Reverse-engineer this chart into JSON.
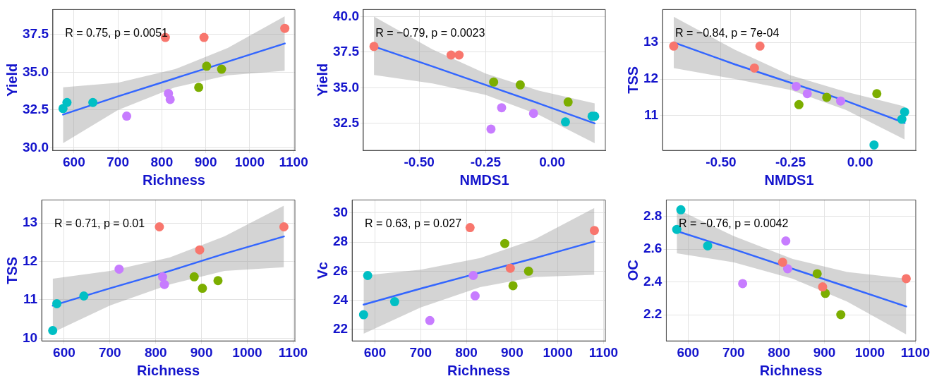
{
  "chart_data": [
    {
      "type": "scatter",
      "xlabel": "Richness",
      "ylabel": "Yield",
      "annotations": [
        "R = 0.75, p = 0.0051"
      ],
      "xlim": [
        552,
        1103
      ],
      "ylim": [
        29.83,
        39.15
      ],
      "xticks": [
        600,
        700,
        800,
        900,
        1000,
        1100
      ],
      "yticks": [
        {
          "value": 30,
          "label": "30.0"
        },
        32.5,
        {
          "value": 35,
          "label": "35.0"
        },
        37.5
      ],
      "grid": true,
      "legend": false,
      "marker": "circle",
      "series": [
        {
          "type": "line",
          "marker": "none",
          "color": "#3366ff",
          "x": [
            575,
            700,
            830,
            950,
            1080
          ],
          "values": [
            32.2,
            33.4,
            34.6,
            35.7,
            36.9
          ],
          "lower": [
            30.3,
            32.5,
            34.0,
            34.8,
            35.1
          ],
          "upper": [
            34.0,
            34.3,
            35.2,
            36.6,
            38.7
          ]
        },
        {
          "color": "#f8766d",
          "x": [
            808,
            896,
            1080
          ],
          "values": [
            37.3,
            37.3,
            37.9
          ]
        },
        {
          "color": "#7cae00",
          "x": [
            884,
            902,
            936
          ],
          "values": [
            34.0,
            35.4,
            35.2
          ]
        },
        {
          "color": "#00bfc4",
          "x": [
            575,
            584,
            643
          ],
          "values": [
            32.6,
            33.0,
            33.0
          ]
        },
        {
          "color": "#c77cff",
          "x": [
            720,
            815,
            819
          ],
          "values": [
            32.1,
            33.6,
            33.2
          ]
        }
      ]
    },
    {
      "type": "scatter",
      "xlabel": "NMDS1",
      "ylabel": "Yield",
      "annotations": [
        "R = −0.79, p = 0.0023"
      ],
      "xlim": [
        -0.71,
        0.2
      ],
      "ylim": [
        30.6,
        40.5
      ],
      "xticks": [
        {
          "value": -0.5,
          "label": "-0.50"
        },
        {
          "value": -0.25,
          "label": "-0.25"
        },
        {
          "value": 0,
          "label": "0.00"
        }
      ],
      "yticks": [
        32.5,
        {
          "value": 35,
          "label": "35.0"
        },
        37.5,
        {
          "value": 40,
          "label": "40.0"
        }
      ],
      "grid": true,
      "legend": false,
      "marker": "circle",
      "series": [
        {
          "type": "line",
          "marker": "none",
          "color": "#3366ff",
          "x": [
            -0.67,
            -0.45,
            -0.25,
            -0.05,
            0.16
          ],
          "values": [
            37.9,
            36.5,
            35.2,
            33.9,
            32.5
          ],
          "lower": [
            35.9,
            35.3,
            34.5,
            33.1,
            31.1
          ],
          "upper": [
            40.0,
            37.7,
            36.0,
            34.8,
            33.9
          ]
        },
        {
          "color": "#f8766d",
          "x": [
            -0.67,
            -0.38,
            -0.35
          ],
          "values": [
            37.9,
            37.3,
            37.3
          ]
        },
        {
          "color": "#7cae00",
          "x": [
            -0.22,
            -0.12,
            0.06
          ],
          "values": [
            35.4,
            35.2,
            34.0
          ]
        },
        {
          "color": "#00bfc4",
          "x": [
            0.05,
            0.15,
            0.16
          ],
          "values": [
            32.6,
            33.0,
            33.0
          ]
        },
        {
          "color": "#c77cff",
          "x": [
            -0.23,
            -0.19,
            -0.07
          ],
          "values": [
            32.1,
            33.6,
            33.2
          ]
        }
      ]
    },
    {
      "type": "scatter",
      "xlabel": "NMDS1",
      "ylabel": "TSS",
      "annotations": [
        "R = −0.84, p = 7e-04"
      ],
      "xlim": [
        -0.71,
        0.2
      ],
      "ylim": [
        10.05,
        13.9
      ],
      "xticks": [
        {
          "value": -0.5,
          "label": "-0.50"
        },
        {
          "value": -0.25,
          "label": "-0.25"
        },
        {
          "value": 0,
          "label": "0.00"
        }
      ],
      "yticks": [
        11,
        12,
        13
      ],
      "grid": true,
      "legend": false,
      "marker": "circle",
      "series": [
        {
          "type": "line",
          "marker": "none",
          "color": "#3366ff",
          "x": [
            -0.67,
            -0.45,
            -0.25,
            -0.05,
            0.16
          ],
          "values": [
            13.0,
            12.4,
            11.9,
            11.4,
            10.8
          ],
          "lower": [
            12.3,
            12.0,
            11.7,
            11.15,
            10.35
          ],
          "upper": [
            13.7,
            12.8,
            12.1,
            11.65,
            11.25
          ]
        },
        {
          "color": "#f8766d",
          "x": [
            -0.67,
            -0.36,
            -0.38
          ],
          "values": [
            12.9,
            12.9,
            12.3
          ]
        },
        {
          "color": "#7cae00",
          "x": [
            -0.22,
            -0.12,
            0.06
          ],
          "values": [
            11.3,
            11.5,
            11.6
          ]
        },
        {
          "color": "#00bfc4",
          "x": [
            0.05,
            0.16,
            0.15
          ],
          "values": [
            10.2,
            11.1,
            10.9
          ]
        },
        {
          "color": "#c77cff",
          "x": [
            -0.23,
            -0.19,
            -0.07
          ],
          "values": [
            11.8,
            11.6,
            11.4
          ]
        }
      ]
    },
    {
      "type": "scatter",
      "xlabel": "Richness",
      "ylabel": "TSS",
      "annotations": [
        "R = 0.71, p = 0.01"
      ],
      "xlim": [
        551,
        1104
      ],
      "ylim": [
        9.93,
        13.6
      ],
      "xticks": [
        600,
        700,
        800,
        900,
        1000,
        1100
      ],
      "yticks": [
        10,
        11,
        12,
        13
      ],
      "grid": true,
      "legend": false,
      "marker": "circle",
      "series": [
        {
          "type": "line",
          "marker": "none",
          "color": "#3366ff",
          "x": [
            575,
            700,
            830,
            950,
            1080
          ],
          "values": [
            10.85,
            11.3,
            11.75,
            12.2,
            12.65
          ],
          "lower": [
            10.15,
            10.85,
            11.4,
            11.75,
            11.85
          ],
          "upper": [
            11.55,
            11.75,
            12.1,
            12.65,
            13.45
          ]
        },
        {
          "color": "#f8766d",
          "x": [
            808,
            896,
            1080
          ],
          "values": [
            12.9,
            12.3,
            12.9
          ]
        },
        {
          "color": "#7cae00",
          "x": [
            884,
            902,
            936
          ],
          "values": [
            11.6,
            11.3,
            11.5
          ]
        },
        {
          "color": "#00bfc4",
          "x": [
            575,
            584,
            643
          ],
          "values": [
            10.2,
            10.9,
            11.1
          ]
        },
        {
          "color": "#c77cff",
          "x": [
            720,
            815,
            819
          ],
          "values": [
            11.8,
            11.6,
            11.4
          ]
        }
      ]
    },
    {
      "type": "scatter",
      "xlabel": "Richness",
      "ylabel": "Vc",
      "annotations": [
        "R = 0.63, p = 0.027"
      ],
      "xlim": [
        550,
        1104
      ],
      "ylim": [
        21.2,
        30.9
      ],
      "xticks": [
        600,
        700,
        800,
        900,
        1000,
        1100
      ],
      "yticks": [
        22,
        24,
        26,
        28,
        30
      ],
      "grid": true,
      "legend": false,
      "marker": "circle",
      "series": [
        {
          "type": "line",
          "marker": "none",
          "color": "#3366ff",
          "x": [
            575,
            700,
            830,
            950,
            1080
          ],
          "values": [
            23.7,
            24.8,
            25.9,
            26.9,
            28.05
          ],
          "lower": [
            21.7,
            23.5,
            24.9,
            25.6,
            25.75
          ],
          "upper": [
            25.7,
            26.1,
            26.9,
            28.2,
            30.35
          ]
        },
        {
          "color": "#f8766d",
          "x": [
            808,
            896,
            1080
          ],
          "values": [
            29.0,
            26.2,
            28.8
          ]
        },
        {
          "color": "#7cae00",
          "x": [
            884,
            902,
            936
          ],
          "values": [
            27.9,
            25.0,
            26.0
          ]
        },
        {
          "color": "#00bfc4",
          "x": [
            575,
            584,
            643
          ],
          "values": [
            23.0,
            25.7,
            23.9
          ]
        },
        {
          "color": "#c77cff",
          "x": [
            720,
            815,
            819
          ],
          "values": [
            22.6,
            25.7,
            24.3
          ]
        }
      ]
    },
    {
      "type": "scatter",
      "xlabel": "Richness",
      "ylabel": "OC",
      "annotations": [
        "R = −0.76, p = 0.0042"
      ],
      "xlim": [
        552,
        1101
      ],
      "ylim": [
        2.04,
        2.9
      ],
      "xticks": [
        600,
        700,
        800,
        900,
        1000,
        1100
      ],
      "yticks": [
        2.2,
        2.4,
        2.6,
        2.8
      ],
      "grid": true,
      "legend": false,
      "marker": "circle",
      "series": [
        {
          "type": "line",
          "marker": "none",
          "color": "#3366ff",
          "x": [
            575,
            700,
            830,
            950,
            1080
          ],
          "values": [
            2.71,
            2.6,
            2.48,
            2.37,
            2.25
          ],
          "lower": [
            2.575,
            2.52,
            2.42,
            2.28,
            2.08
          ],
          "upper": [
            2.845,
            2.68,
            2.54,
            2.46,
            2.42
          ]
        },
        {
          "color": "#f8766d",
          "x": [
            808,
            896,
            1080
          ],
          "values": [
            2.52,
            2.37,
            2.42
          ]
        },
        {
          "color": "#7cae00",
          "x": [
            884,
            902,
            936
          ],
          "values": [
            2.45,
            2.33,
            2.2
          ]
        },
        {
          "color": "#00bfc4",
          "x": [
            575,
            584,
            643
          ],
          "values": [
            2.72,
            2.84,
            2.62
          ]
        },
        {
          "color": "#c77cff",
          "x": [
            720,
            815,
            819
          ],
          "values": [
            2.39,
            2.65,
            2.48
          ]
        }
      ]
    }
  ]
}
